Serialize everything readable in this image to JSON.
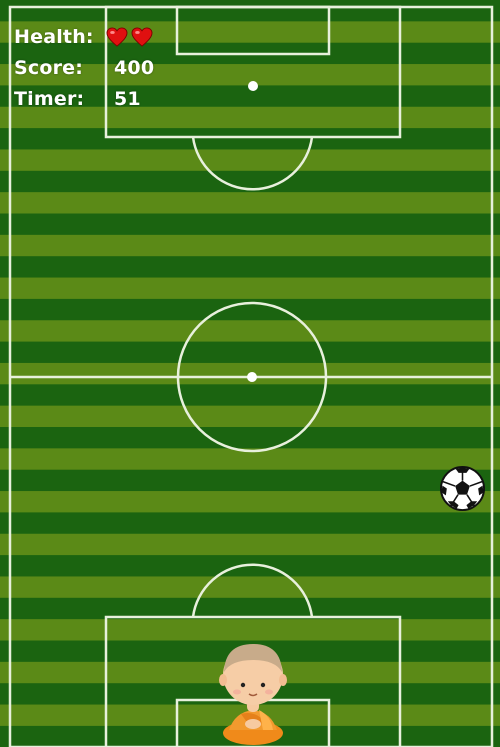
{
  "hud": {
    "health_label": "Health:",
    "health_value": 2,
    "score_label": "Score:",
    "score_value": "400",
    "timer_label": "Timer:",
    "timer_value": "51"
  },
  "icons": {
    "heart": "heart-icon",
    "ball": "soccer-ball-icon",
    "player": "monk-player-icon"
  },
  "colors": {
    "stripe_dark": "#1b6410",
    "stripe_light": "#5b8a17",
    "lines": "#e8f0dc",
    "heart": "#e01010",
    "hud_text": "#ffffff"
  }
}
